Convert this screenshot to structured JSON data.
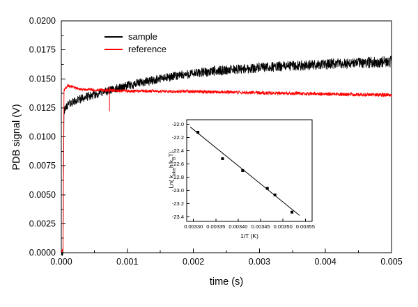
{
  "figure": {
    "background": "#ffffff",
    "axis_color": "#000000"
  },
  "chart_data": [
    {
      "id": "main",
      "type": "line",
      "title": "",
      "xlabel": "time (s)",
      "ylabel": "PDB signal (V)",
      "xlim": [
        0,
        0.005
      ],
      "ylim": [
        0,
        0.02
      ],
      "grid": false,
      "xticks": {
        "values": [
          0,
          0.001,
          0.002,
          0.003,
          0.004,
          0.005
        ],
        "labels": [
          "0.000",
          "0.001",
          "0.002",
          "0.003",
          "0.004",
          "0.005"
        ]
      },
      "yticks": {
        "values": [
          0,
          0.0025,
          0.005,
          0.0075,
          0.01,
          0.0125,
          0.015,
          0.0175,
          0.02
        ],
        "labels": [
          "0.0000",
          "0.0025",
          "0.0050",
          "0.0075",
          "0.0100",
          "0.0125",
          "0.0150",
          "0.0175",
          "0.0200"
        ]
      },
      "legend": {
        "position": "top-left-inside",
        "items": [
          "sample",
          "reference"
        ]
      },
      "series": [
        {
          "name": "sample",
          "color": "#000000",
          "noise": 0.00042,
          "anchors": [
            [
              0,
              5e-05
            ],
            [
              2.5e-05,
              0.0001
            ],
            [
              4e-05,
              0.0122
            ],
            [
              0.0001,
              0.0128
            ],
            [
              0.0003,
              0.0133
            ],
            [
              0.0006,
              0.0138
            ],
            [
              0.001,
              0.0144
            ],
            [
              0.0014,
              0.0149
            ],
            [
              0.0018,
              0.0153
            ],
            [
              0.0022,
              0.0156
            ],
            [
              0.0026,
              0.0158
            ],
            [
              0.003,
              0.01595
            ],
            [
              0.0034,
              0.0161
            ],
            [
              0.0038,
              0.0162
            ],
            [
              0.0042,
              0.0163
            ],
            [
              0.0046,
              0.0164
            ],
            [
              0.005,
              0.0165
            ]
          ]
        },
        {
          "name": "reference",
          "color": "#ff0000",
          "noise": 0.00014,
          "anchors": [
            [
              0,
              0.0001
            ],
            [
              2.5e-05,
              0.0002
            ],
            [
              4e-05,
              0.014
            ],
            [
              0.0001,
              0.0144
            ],
            [
              0.0003,
              0.0141
            ],
            [
              0.001,
              0.01395
            ],
            [
              0.002,
              0.0139
            ],
            [
              0.003,
              0.0138
            ],
            [
              0.004,
              0.0137
            ],
            [
              0.005,
              0.0136
            ]
          ],
          "glitches": [
            {
              "x": 0.00073,
              "y0": 0.0122,
              "y1": 0.0143
            }
          ]
        }
      ]
    },
    {
      "id": "inset",
      "type": "scatter",
      "xlabel": "1/T (K)",
      "ylabel_text": "Ln( k_obs h/k_B T)",
      "ylabel_parts": [
        {
          "t": "Ln( k"
        },
        {
          "t": "obs",
          "sub": true
        },
        {
          "t": "h/k"
        },
        {
          "t": "B",
          "sub": true
        },
        {
          "t": "T)"
        }
      ],
      "xlim": [
        0.003285,
        0.003565
      ],
      "ylim": [
        -23.47,
        -21.93
      ],
      "xticks": {
        "values": [
          0.0033,
          0.00335,
          0.0034,
          0.00345,
          0.0035,
          0.00355
        ],
        "labels": [
          "0.00330",
          "0.00335",
          "0.00340",
          "0.00345",
          "0.00350",
          "0.00355"
        ]
      },
      "yticks": {
        "values": [
          -22.0,
          -22.2,
          -22.4,
          -22.6,
          -22.8,
          -23.0,
          -23.2,
          -23.4
        ],
        "labels": [
          "-22.0",
          "-22.2",
          "-22.4",
          "-22.6",
          "-22.8",
          "-23.0",
          "-23.2",
          "-23.4"
        ]
      },
      "points": [
        [
          0.00331,
          -22.12
        ],
        [
          0.003365,
          -22.52
        ],
        [
          0.00341,
          -22.7
        ],
        [
          0.003465,
          -22.97
        ],
        [
          0.003482,
          -23.07
        ],
        [
          0.00352,
          -23.33
        ]
      ],
      "fit_line": {
        "x1": 0.003293,
        "y1": -22.04,
        "x2": 0.003537,
        "y2": -23.38
      },
      "marker": {
        "shape": "square",
        "color": "#000000",
        "size": 4
      }
    }
  ]
}
